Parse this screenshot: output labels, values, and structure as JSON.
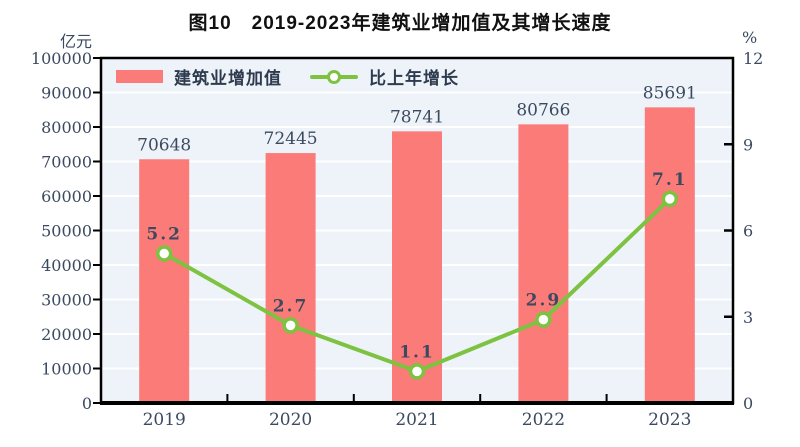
{
  "title": "图10　2019-2023年建筑业增加值及其增长速度",
  "chart_data": {
    "type": "bar",
    "combo": "bar+line",
    "title": "图10　2019-2023年建筑业增加值及其增长速度",
    "categories": [
      "2019",
      "2020",
      "2021",
      "2022",
      "2023"
    ],
    "series": [
      {
        "name": "建筑业增加值",
        "type": "bar",
        "axis": "left",
        "color": "#fb7b78",
        "values": [
          70648,
          72445,
          78741,
          80766,
          85691
        ]
      },
      {
        "name": "比上年增长",
        "type": "line",
        "axis": "right",
        "color": "#7dc241",
        "marker_fill": "#ffffff",
        "values": [
          5.2,
          2.7,
          1.1,
          2.9,
          7.1
        ]
      }
    ],
    "left_axis": {
      "label": "亿元",
      "min": 0,
      "max": 100000,
      "step": 10000,
      "ticks": [
        "0",
        "10000",
        "20000",
        "30000",
        "40000",
        "50000",
        "60000",
        "70000",
        "80000",
        "90000",
        "100000"
      ]
    },
    "right_axis": {
      "label": "%",
      "min": 0,
      "max": 12,
      "step": 3,
      "ticks": [
        "0",
        "3",
        "6",
        "9",
        "12"
      ]
    },
    "legend_position": "top-left-inside",
    "grid": true,
    "colors": {
      "plot_bg": "#edf3f8",
      "grid": "#ffffff",
      "border": "#000000",
      "text": "#3c4a60",
      "title": "#111111"
    }
  }
}
